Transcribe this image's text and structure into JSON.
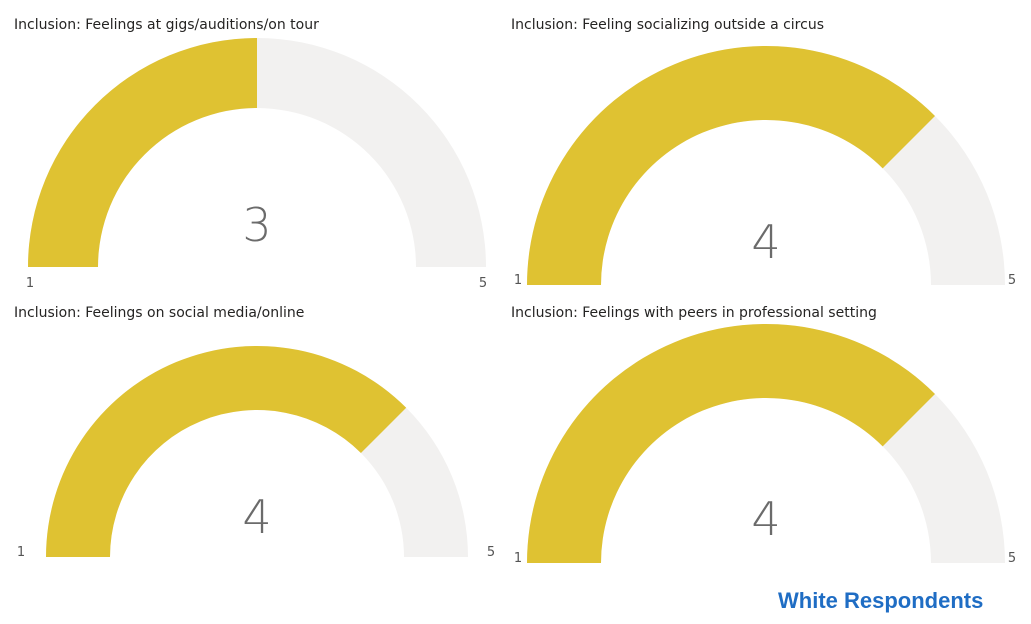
{
  "chart_data": [
    {
      "type": "gauge",
      "title": "Inclusion: Feelings at gigs/auditions/on tour",
      "value": 3,
      "min": 1,
      "max": 5,
      "value_label": "3",
      "min_label": "1",
      "max_label": "5"
    },
    {
      "type": "gauge",
      "title": "Inclusion: Feeling socializing outside a circus",
      "value": 4,
      "min": 1,
      "max": 5,
      "value_label": "4",
      "min_label": "1",
      "max_label": "5"
    },
    {
      "type": "gauge",
      "title": "Inclusion: Feelings on social media/online",
      "value": 4,
      "min": 1,
      "max": 5,
      "value_label": "4",
      "min_label": "1",
      "max_label": "5"
    },
    {
      "type": "gauge",
      "title": "Inclusion: Feelings with peers in professional setting",
      "value": 4,
      "min": 1,
      "max": 5,
      "value_label": "4",
      "min_label": "1",
      "max_label": "5"
    }
  ],
  "colors": {
    "fill": "#dfc232",
    "track": "#f2f1f0",
    "value_text": "#6b6b6b",
    "footer": "#1f6dc4"
  },
  "footer": "White Respondents"
}
